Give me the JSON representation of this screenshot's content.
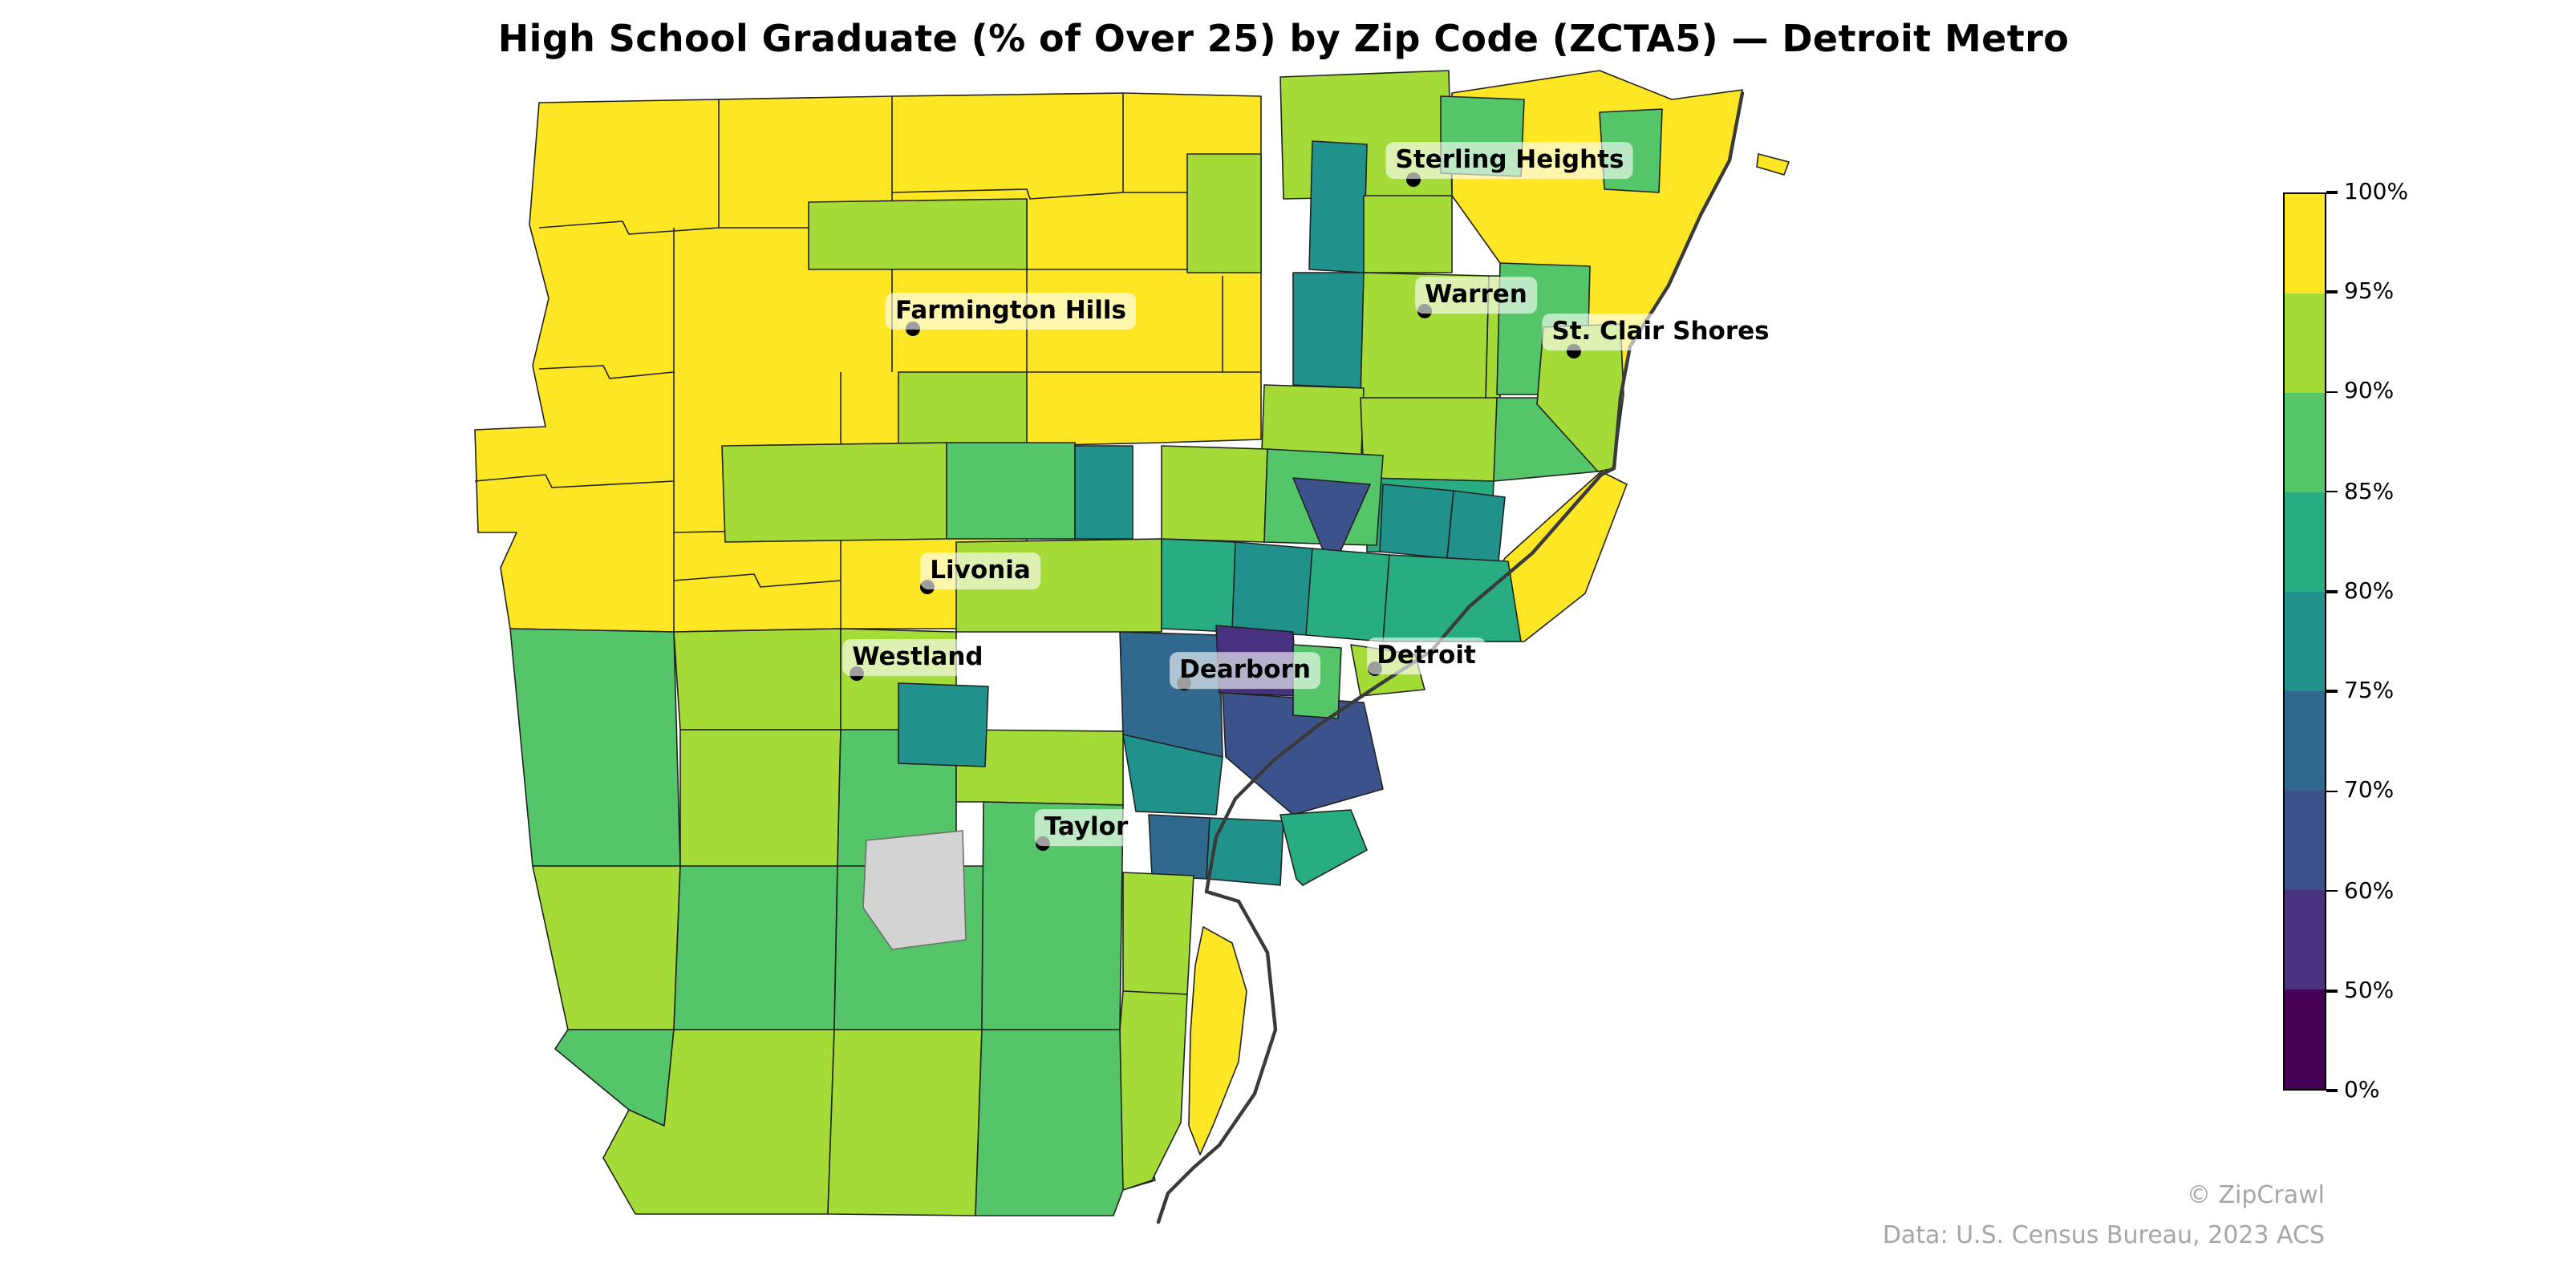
{
  "title": "High School Graduate (% of Over 25) by Zip Code (ZCTA5) — Detroit Metro",
  "attribution": {
    "watermark": "© ZipCrawl",
    "source_note": "Data: U.S. Census Bureau, 2023 ACS"
  },
  "colorbar": {
    "tick_labels": [
      "100%",
      "95%",
      "90%",
      "85%",
      "80%",
      "75%",
      "70%",
      "60%",
      "50%",
      "0%"
    ],
    "segments_top_to_bottom": [
      {
        "range": "95-100%",
        "color": "#fde725"
      },
      {
        "range": "90-95%",
        "color": "#a5db36"
      },
      {
        "range": "85-90%",
        "color": "#54c568"
      },
      {
        "range": "80-85%",
        "color": "#27ad81"
      },
      {
        "range": "75-80%",
        "color": "#21918c"
      },
      {
        "range": "70-75%",
        "color": "#31688e"
      },
      {
        "range": "60-70%",
        "color": "#3b528b"
      },
      {
        "range": "50-60%",
        "color": "#46327e"
      },
      {
        "range": "0-50%",
        "color": "#440154"
      }
    ]
  },
  "cities": [
    {
      "name": "Sterling Heights",
      "dot": [
        881,
        112
      ],
      "label": [
        941,
        100
      ]
    },
    {
      "name": "Farmington Hills",
      "dot": [
        569,
        205
      ],
      "label": [
        630,
        194
      ]
    },
    {
      "name": "Warren",
      "dot": [
        888,
        194
      ],
      "label": [
        920,
        184
      ]
    },
    {
      "name": "St. Clair Shores",
      "dot": [
        981,
        219
      ],
      "label": [
        1035,
        207
      ]
    },
    {
      "name": "Livonia",
      "dot": [
        578,
        366
      ],
      "label": [
        611,
        356
      ]
    },
    {
      "name": "Westland",
      "dot": [
        534,
        420
      ],
      "label": [
        572,
        410
      ]
    },
    {
      "name": "Dearborn",
      "dot": [
        738,
        426
      ],
      "label": [
        776,
        418
      ]
    },
    {
      "name": "Detroit",
      "dot": [
        857,
        417
      ],
      "label": [
        889,
        409
      ]
    },
    {
      "name": "Taylor",
      "dot": [
        650,
        526
      ],
      "label": [
        677,
        516
      ]
    }
  ],
  "chart_data": {
    "type": "choropleth",
    "title": "High School Graduate (% of Over 25) by Zip Code (ZCTA5) — Detroit Metro",
    "geography": "ZCTA5 zip code areas, Detroit metropolitan region, Michigan",
    "metric": "Percent of population over age 25 that graduated high school",
    "colormap": "viridis, discrete bins",
    "bin_edges_percent": [
      0,
      50,
      60,
      70,
      75,
      80,
      85,
      90,
      95,
      100
    ],
    "bin_colors": [
      "#440154",
      "#46327e",
      "#3b528b",
      "#31688e",
      "#21918c",
      "#27ad81",
      "#54c568",
      "#a5db36",
      "#fde725"
    ],
    "no_data_color": "#d3d3d3",
    "legend_position": "right vertical colorbar",
    "labeled_cities": [
      "Sterling Heights",
      "Farmington Hills",
      "Warren",
      "St. Clair Shores",
      "Livonia",
      "Westland",
      "Dearborn",
      "Detroit",
      "Taylor"
    ],
    "spatial_pattern": {
      "95_100": "Outer western / northwestern suburbs (Farmington Hills, Livonia, Novi area) plus NE lakeshore and Grosse Pointe strip — bright yellow",
      "90_95": "Inner-ring suburbs: Warren, St. Clair Shores, Westland, Sterling Heights — yellow-green",
      "75_90": "Detroit city neighborhoods, downriver and near-east suburbs — greens and teals",
      "60_75": "Central Detroit / Hamtramck triangle and south Dearborn — steel blue and navy",
      "50_60": "Small indigo zone at Dearborn",
      "no_data": "One light-gray polygon southwest of Taylor",
      "water": "Lake St. Clair and Detroit River shown white with dark international-border line"
    }
  }
}
